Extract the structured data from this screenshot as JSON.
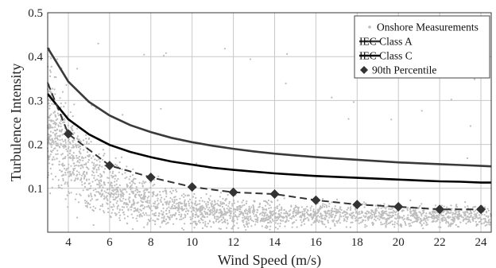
{
  "chart_data": {
    "type": "scatter",
    "title": "",
    "xlabel": "Wind Speed (m/s)",
    "ylabel": "Turbulence Intensity",
    "xlim": [
      3,
      24.5
    ],
    "ylim": [
      0,
      0.5
    ],
    "xticks": [
      4,
      6,
      8,
      10,
      12,
      14,
      16,
      18,
      20,
      22,
      24
    ],
    "yticks": [
      0.1,
      0.2,
      0.3,
      0.4,
      0.5
    ],
    "tick_labels_x": [
      "4",
      "6",
      "8",
      "10",
      "12",
      "14",
      "16",
      "18",
      "20",
      "22",
      "24"
    ],
    "tick_labels_y": [
      "0.1",
      "0.2",
      "0.3",
      "0.4",
      "0.5"
    ],
    "grid": true,
    "legend_position": "top-right",
    "series": [
      {
        "name": "Onshore Measurements",
        "kind": "scatter-cloud",
        "color": "#bdbdbd",
        "marker": "dot"
      },
      {
        "name": "IEC Class A",
        "kind": "line",
        "color": "#3a3a3a",
        "style": "solid",
        "x": [
          3,
          4,
          5,
          6,
          7,
          8,
          9,
          10,
          11,
          12,
          13,
          14,
          15,
          16,
          17,
          18,
          19,
          20,
          21,
          22,
          23,
          24,
          24.5
        ],
        "y": [
          0.42,
          0.343,
          0.297,
          0.266,
          0.244,
          0.228,
          0.215,
          0.205,
          0.197,
          0.19,
          0.184,
          0.179,
          0.175,
          0.171,
          0.168,
          0.165,
          0.162,
          0.159,
          0.157,
          0.155,
          0.153,
          0.151,
          0.15
        ]
      },
      {
        "name": "IEC Class C",
        "kind": "line",
        "color": "#000000",
        "style": "solid",
        "x": [
          3,
          4,
          5,
          6,
          7,
          8,
          9,
          10,
          11,
          12,
          13,
          14,
          15,
          16,
          17,
          18,
          19,
          20,
          21,
          22,
          23,
          24,
          24.5
        ],
        "y": [
          0.315,
          0.257,
          0.223,
          0.199,
          0.183,
          0.171,
          0.161,
          0.154,
          0.147,
          0.142,
          0.138,
          0.134,
          0.131,
          0.128,
          0.126,
          0.124,
          0.122,
          0.12,
          0.118,
          0.116,
          0.115,
          0.113,
          0.113
        ]
      },
      {
        "name": "90th Percentile",
        "kind": "line-markers",
        "color": "#333333",
        "style": "dashed",
        "marker": "diamond",
        "x": [
          3,
          4,
          6,
          8,
          10,
          12,
          14,
          16,
          18,
          20,
          22,
          24
        ],
        "y": [
          0.34,
          0.224,
          0.152,
          0.125,
          0.103,
          0.091,
          0.087,
          0.073,
          0.063,
          0.058,
          0.052,
          0.052
        ]
      }
    ]
  }
}
